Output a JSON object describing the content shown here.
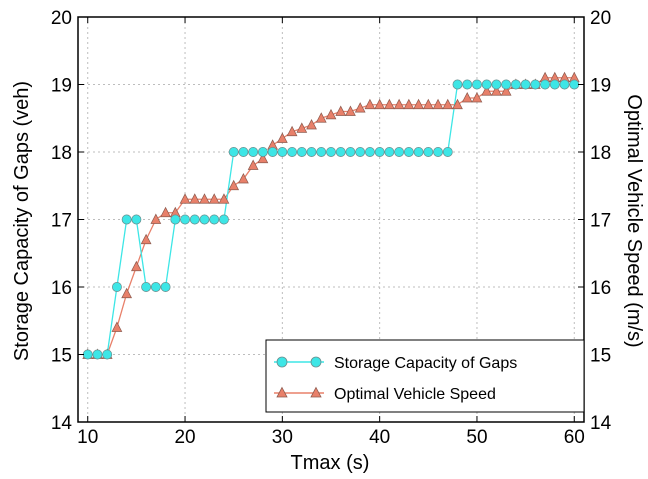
{
  "chart_data": {
    "type": "line",
    "xlabel": "Tmax (s)",
    "ylabel_left": "Storage Capacity of Gaps (veh)",
    "ylabel_right": "Optimal Vehicle Speed (m/s)",
    "xlim": [
      9,
      61
    ],
    "ylim": [
      14,
      20
    ],
    "ylim_right": [
      14,
      20
    ],
    "xticks": [
      10,
      20,
      30,
      40,
      50,
      60
    ],
    "yticks": [
      14,
      15,
      16,
      17,
      18,
      19,
      20
    ],
    "yticks_right": [
      14,
      15,
      16,
      17,
      18,
      19,
      20
    ],
    "grid": true,
    "legend_position": "bottom-right",
    "x": [
      10,
      11,
      12,
      13,
      14,
      15,
      16,
      17,
      18,
      19,
      20,
      21,
      22,
      23,
      24,
      25,
      26,
      27,
      28,
      29,
      30,
      31,
      32,
      33,
      34,
      35,
      36,
      37,
      38,
      39,
      40,
      41,
      42,
      43,
      44,
      45,
      46,
      47,
      48,
      49,
      50,
      51,
      52,
      53,
      54,
      55,
      56,
      57,
      58,
      59,
      60
    ],
    "series": [
      {
        "name": "Storage Capacity of Gaps",
        "axis": "left",
        "color": "#3de6e6",
        "marker": "circle",
        "values": [
          15,
          15,
          15,
          16,
          17,
          17,
          16,
          16,
          16,
          17,
          17,
          17,
          17,
          17,
          17,
          18,
          18,
          18,
          18,
          18,
          18,
          18,
          18,
          18,
          18,
          18,
          18,
          18,
          18,
          18,
          18,
          18,
          18,
          18,
          18,
          18,
          18,
          18,
          19,
          19,
          19,
          19,
          19,
          19,
          19,
          19,
          19,
          19,
          19,
          19,
          19
        ]
      },
      {
        "name": "Optimal Vehicle Speed",
        "axis": "right",
        "color": "#e8806a",
        "marker": "triangle",
        "values": [
          15,
          15,
          15,
          15.4,
          15.9,
          16.3,
          16.7,
          17.0,
          17.1,
          17.1,
          17.3,
          17.3,
          17.3,
          17.3,
          17.3,
          17.5,
          17.6,
          17.8,
          17.9,
          18.1,
          18.2,
          18.3,
          18.35,
          18.4,
          18.5,
          18.55,
          18.6,
          18.6,
          18.65,
          18.7,
          18.7,
          18.7,
          18.7,
          18.7,
          18.7,
          18.7,
          18.7,
          18.7,
          18.7,
          18.8,
          18.8,
          18.9,
          18.9,
          18.9,
          19.0,
          19.0,
          19.0,
          19.1,
          19.1,
          19.1,
          19.1
        ]
      }
    ]
  }
}
